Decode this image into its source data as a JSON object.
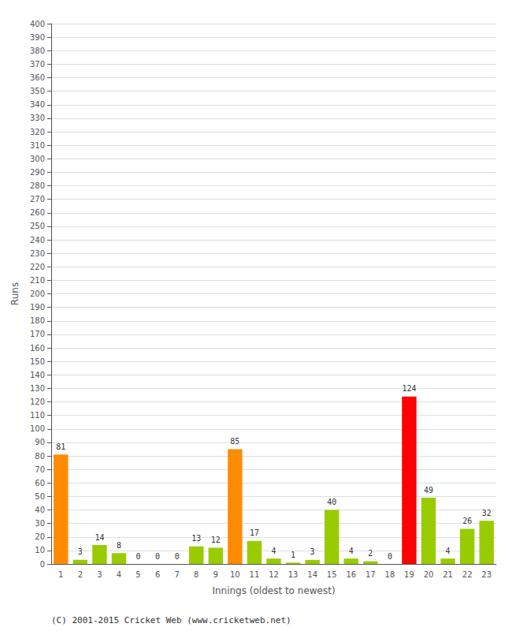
{
  "chart_data": {
    "type": "bar",
    "categories": [
      "1",
      "2",
      "3",
      "4",
      "5",
      "6",
      "7",
      "8",
      "9",
      "10",
      "11",
      "12",
      "13",
      "14",
      "15",
      "16",
      "17",
      "18",
      "19",
      "20",
      "21",
      "22",
      "23"
    ],
    "values": [
      81,
      3,
      14,
      8,
      0,
      0,
      0,
      13,
      12,
      85,
      17,
      4,
      1,
      3,
      40,
      4,
      2,
      0,
      124,
      49,
      4,
      26,
      32
    ],
    "colors": [
      "#ff8c00",
      "#99cc00",
      "#99cc00",
      "#99cc00",
      "#99cc00",
      "#99cc00",
      "#99cc00",
      "#99cc00",
      "#99cc00",
      "#ff8c00",
      "#99cc00",
      "#99cc00",
      "#99cc00",
      "#99cc00",
      "#99cc00",
      "#99cc00",
      "#99cc00",
      "#99cc00",
      "#ff0000",
      "#99cc00",
      "#99cc00",
      "#99cc00",
      "#99cc00"
    ],
    "xlabel": "Innings (oldest to newest)",
    "ylabel": "Runs",
    "ylim": [
      0,
      400
    ],
    "yticks": [
      0,
      10,
      20,
      30,
      40,
      50,
      60,
      70,
      80,
      90,
      100,
      110,
      120,
      130,
      140,
      150,
      160,
      170,
      180,
      190,
      200,
      210,
      220,
      230,
      240,
      250,
      260,
      270,
      280,
      290,
      300,
      310,
      320,
      330,
      340,
      350,
      360,
      370,
      380,
      390,
      400
    ],
    "grid": true,
    "data_labels": true,
    "annotations": [
      "(C) 2001-2015 Cricket Web (www.cricketweb.net)"
    ]
  }
}
